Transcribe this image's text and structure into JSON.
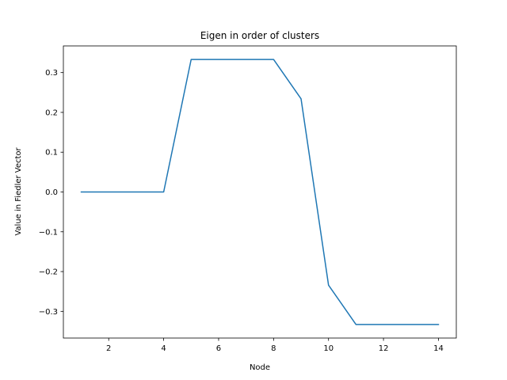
{
  "chart_data": {
    "type": "line",
    "title": "Eigen in order of clusters",
    "xlabel": "Node",
    "ylabel": "Value in Fiedler Vector",
    "xlim": [
      0.35,
      14.65
    ],
    "ylim": [
      -0.367,
      0.367
    ],
    "xticks": [
      2,
      4,
      6,
      8,
      10,
      12,
      14
    ],
    "xtick_labels": [
      "2",
      "4",
      "6",
      "8",
      "10",
      "12",
      "14"
    ],
    "yticks": [
      -0.3,
      -0.2,
      -0.1,
      0.0,
      0.1,
      0.2,
      0.3
    ],
    "ytick_labels": [
      "−0.3",
      "−0.2",
      "−0.1",
      "0.0",
      "0.1",
      "0.2",
      "0.3"
    ],
    "grid": false,
    "series": [
      {
        "color": "#1f77b4",
        "x": [
          1,
          2,
          3,
          4,
          5,
          6,
          7,
          8,
          9,
          10,
          11,
          12,
          13,
          14
        ],
        "y": [
          0.0,
          0.0,
          0.0,
          0.0,
          0.333,
          0.333,
          0.333,
          0.333,
          0.234,
          -0.234,
          -0.333,
          -0.333,
          -0.333,
          -0.333
        ]
      }
    ]
  }
}
